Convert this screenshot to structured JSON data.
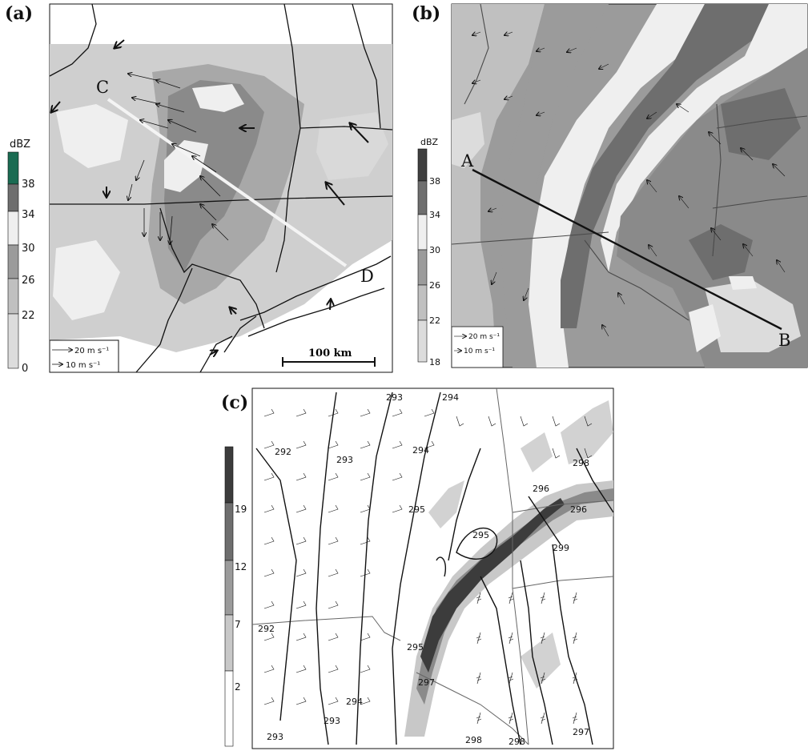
{
  "panels": {
    "a": {
      "label": "(a)",
      "colorbar_title": "dBZ",
      "colorbar_ticks": [
        "38",
        "34",
        "30",
        "26",
        "22",
        "0"
      ],
      "colorbar_colors": [
        "#1a6b52",
        "#6e6e6e",
        "#efefef",
        "#9b9b9b",
        "#c0c0c0",
        "#dcdcdc"
      ],
      "points": {
        "start": "C",
        "end": "D"
      },
      "scale_bar": "100 km",
      "legend": [
        "20 m s⁻¹",
        "10 m s⁻¹"
      ]
    },
    "b": {
      "label": "(b)",
      "colorbar_title": "dBZ",
      "colorbar_ticks": [
        "38",
        "34",
        "30",
        "26",
        "22",
        "18"
      ],
      "colorbar_colors": [
        "#3f3f3f",
        "#6e6e6e",
        "#efefef",
        "#9b9b9b",
        "#c0c0c0",
        "#dcdcdc"
      ],
      "points": {
        "start": "A",
        "end": "B"
      },
      "legend": [
        "20 m s⁻¹",
        "10 m s⁻¹"
      ]
    },
    "c": {
      "label": "(c)",
      "colorbar_ticks": [
        "19",
        "12",
        "7",
        "2"
      ],
      "contour_labels": [
        "292",
        "293",
        "293",
        "294",
        "294",
        "295",
        "295",
        "296",
        "296",
        "298",
        "299",
        "292",
        "295",
        "297",
        "294",
        "293",
        "293",
        "298",
        "298",
        "297"
      ]
    }
  }
}
